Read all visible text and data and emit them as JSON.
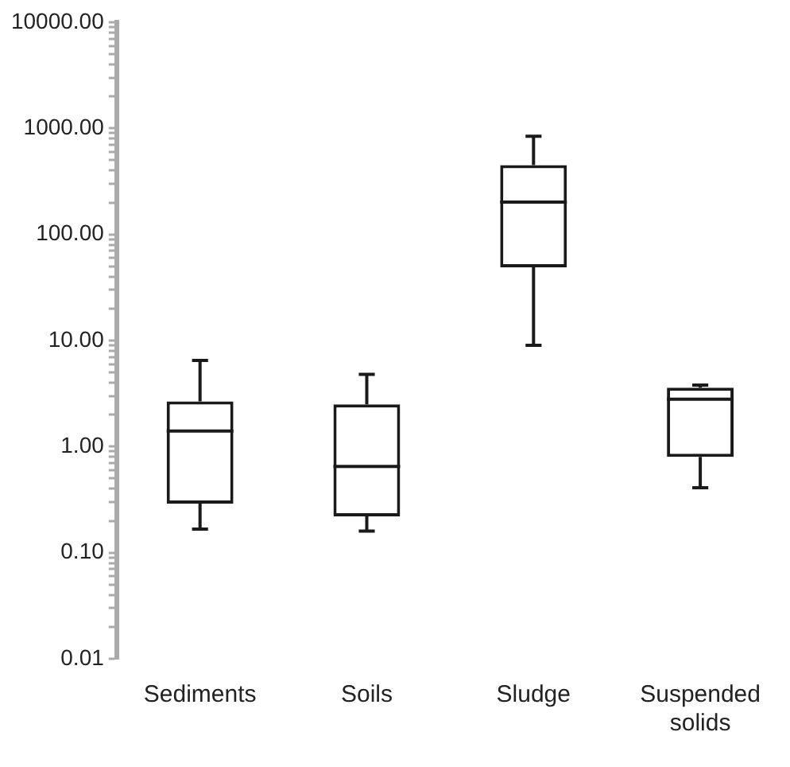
{
  "chart_data": {
    "type": "box",
    "categories": [
      "Sediments",
      "Soils",
      "Sludge",
      "Suspended solids"
    ],
    "boxes": [
      {
        "low": 0.167,
        "q1": 0.29,
        "median": 1.4,
        "q3": 2.67,
        "high": 6.5
      },
      {
        "low": 0.16,
        "q1": 0.22,
        "median": 0.65,
        "q3": 2.5,
        "high": 4.8
      },
      {
        "low": 9,
        "q1": 49,
        "median": 202,
        "q3": 451,
        "high": 842
      },
      {
        "low": 0.41,
        "q1": 0.8,
        "median": 2.8,
        "q3": 3.6,
        "high": 3.8
      }
    ],
    "color": "#1a1a1a",
    "log": true,
    "ylim": [
      0.01,
      10000
    ],
    "yticks": [
      {
        "value": 0.01,
        "label": "0.01"
      },
      {
        "value": 0.02,
        "label": null
      },
      {
        "value": 0.03,
        "label": null
      },
      {
        "value": 0.04,
        "label": null
      },
      {
        "value": 0.05,
        "label": null
      },
      {
        "value": 0.06,
        "label": null
      },
      {
        "value": 0.07,
        "label": null
      },
      {
        "value": 0.08,
        "label": null
      },
      {
        "value": 0.09,
        "label": null
      },
      {
        "value": 0.1,
        "label": "0.10"
      },
      {
        "value": 0.2,
        "label": null
      },
      {
        "value": 0.3,
        "label": null
      },
      {
        "value": 0.4,
        "label": null
      },
      {
        "value": 0.5,
        "label": null
      },
      {
        "value": 0.6,
        "label": null
      },
      {
        "value": 0.7,
        "label": null
      },
      {
        "value": 0.8,
        "label": null
      },
      {
        "value": 0.9,
        "label": null
      },
      {
        "value": 1,
        "label": "1.00"
      },
      {
        "value": 2,
        "label": null
      },
      {
        "value": 3,
        "label": null
      },
      {
        "value": 4,
        "label": null
      },
      {
        "value": 5,
        "label": null
      },
      {
        "value": 6,
        "label": null
      },
      {
        "value": 7,
        "label": null
      },
      {
        "value": 8,
        "label": null
      },
      {
        "value": 9,
        "label": null
      },
      {
        "value": 10,
        "label": "10.00"
      },
      {
        "value": 20,
        "label": null
      },
      {
        "value": 30,
        "label": null
      },
      {
        "value": 40,
        "label": null
      },
      {
        "value": 50,
        "label": null
      },
      {
        "value": 60,
        "label": null
      },
      {
        "value": 70,
        "label": null
      },
      {
        "value": 80,
        "label": null
      },
      {
        "value": 90,
        "label": null
      },
      {
        "value": 100,
        "label": "100.00"
      },
      {
        "value": 200,
        "label": null
      },
      {
        "value": 300,
        "label": null
      },
      {
        "value": 400,
        "label": null
      },
      {
        "value": 500,
        "label": null
      },
      {
        "value": 600,
        "label": null
      },
      {
        "value": 700,
        "label": null
      },
      {
        "value": 800,
        "label": null
      },
      {
        "value": 900,
        "label": null
      },
      {
        "value": 1000,
        "label": "1000.00"
      },
      {
        "value": 2000,
        "label": null
      },
      {
        "value": 3000,
        "label": null
      },
      {
        "value": 4000,
        "label": null
      },
      {
        "value": 5000,
        "label": null
      },
      {
        "value": 6000,
        "label": null
      },
      {
        "value": 7000,
        "label": null
      },
      {
        "value": 8000,
        "label": null
      },
      {
        "value": 9000,
        "label": null
      },
      {
        "value": 10000,
        "label": "10000.00"
      }
    ],
    "grid": false,
    "legend": false
  }
}
